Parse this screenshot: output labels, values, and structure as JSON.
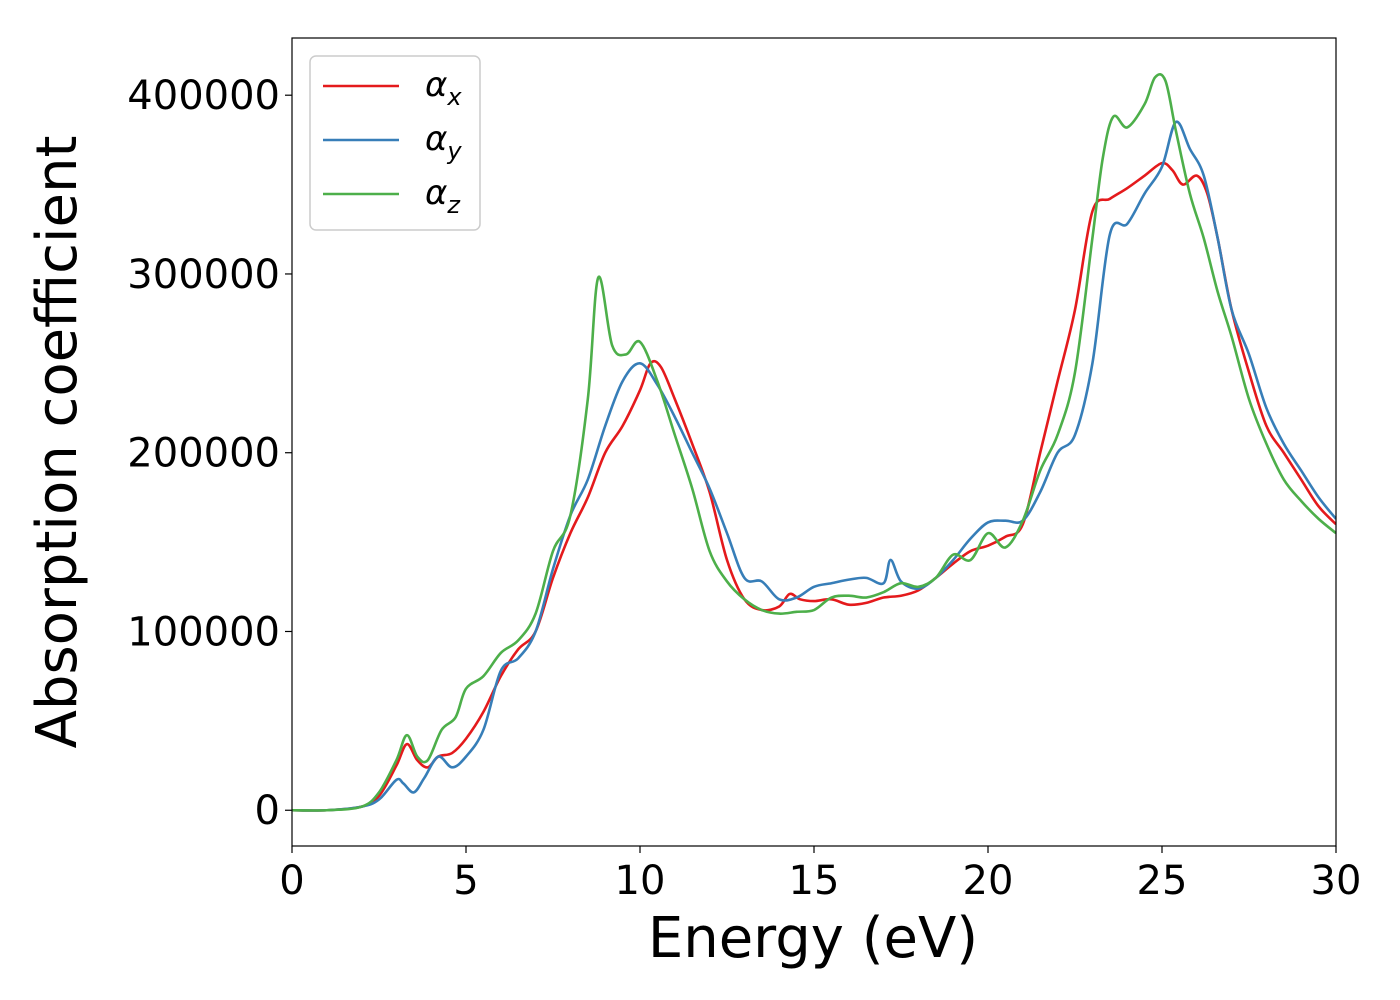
{
  "chart_data": {
    "type": "line",
    "title": "",
    "xlabel": "Energy (eV)",
    "ylabel": "Absorption coefficient",
    "xlim": [
      0,
      30
    ],
    "ylim": [
      -20000,
      432000
    ],
    "xticks": [
      0,
      5,
      10,
      15,
      20,
      25,
      30
    ],
    "yticks": [
      0,
      100000,
      200000,
      300000,
      400000
    ],
    "grid": false,
    "legend_position": "top-left",
    "series": [
      {
        "name": "αx",
        "symbol": "α",
        "subscript": "x",
        "color": "#e41a1c",
        "x": [
          0,
          1,
          2,
          2.5,
          3,
          3.3,
          3.6,
          3.9,
          4.2,
          4.6,
          5,
          5.5,
          6,
          6.5,
          7,
          7.5,
          8,
          8.5,
          9,
          9.5,
          10,
          10.3,
          10.6,
          11,
          11.5,
          12,
          12.5,
          13,
          13.5,
          14,
          14.3,
          14.6,
          15,
          15.5,
          16,
          16.5,
          17,
          17.5,
          18,
          18.5,
          19,
          19.5,
          20,
          20.5,
          21,
          21.5,
          22,
          22.5,
          23,
          23.5,
          24,
          24.5,
          25,
          25.3,
          25.6,
          26,
          26.3,
          26.6,
          27,
          27.5,
          28,
          28.5,
          29,
          29.5,
          30
        ],
        "y": [
          0,
          0,
          2000,
          8000,
          25000,
          37000,
          28000,
          24000,
          30000,
          32000,
          40000,
          55000,
          75000,
          90000,
          100000,
          130000,
          155000,
          175000,
          200000,
          215000,
          235000,
          250000,
          248000,
          230000,
          205000,
          178000,
          140000,
          118000,
          112000,
          114000,
          121000,
          118000,
          117000,
          118000,
          115000,
          116000,
          119000,
          120000,
          123000,
          130000,
          138000,
          145000,
          148000,
          153000,
          160000,
          200000,
          240000,
          280000,
          335000,
          342000,
          348000,
          355000,
          362000,
          358000,
          350000,
          355000,
          345000,
          320000,
          280000,
          245000,
          215000,
          200000,
          185000,
          170000,
          160000
        ]
      },
      {
        "name": "αy",
        "symbol": "α",
        "subscript": "y",
        "color": "#377eb8",
        "x": [
          0,
          1,
          2,
          2.5,
          3,
          3.2,
          3.5,
          3.8,
          4.2,
          4.6,
          5,
          5.5,
          6,
          6.5,
          7,
          7.5,
          8,
          8.5,
          9,
          9.5,
          10,
          10.5,
          11,
          11.5,
          12,
          12.5,
          13,
          13.5,
          14,
          14.5,
          15,
          15.5,
          16,
          16.5,
          17,
          17.2,
          17.5,
          18,
          18.5,
          19,
          19.5,
          20,
          20.5,
          21,
          21.5,
          22,
          22.5,
          23,
          23.5,
          24,
          24.5,
          25,
          25.4,
          25.8,
          26.2,
          26.6,
          27,
          27.5,
          28,
          28.5,
          29,
          29.5,
          30
        ],
        "y": [
          0,
          0,
          2000,
          6000,
          17000,
          15000,
          10000,
          18000,
          30000,
          24000,
          30000,
          45000,
          78000,
          85000,
          100000,
          135000,
          165000,
          185000,
          215000,
          240000,
          250000,
          238000,
          220000,
          200000,
          180000,
          155000,
          130000,
          128000,
          118000,
          119000,
          125000,
          127000,
          129000,
          130000,
          127000,
          140000,
          128000,
          124000,
          130000,
          140000,
          152000,
          161000,
          162000,
          162000,
          178000,
          200000,
          210000,
          250000,
          322000,
          328000,
          345000,
          360000,
          385000,
          370000,
          355000,
          320000,
          280000,
          255000,
          225000,
          205000,
          190000,
          175000,
          163000
        ]
      },
      {
        "name": "αz",
        "symbol": "α",
        "subscript": "z",
        "color": "#4daf4a",
        "x": [
          0,
          1,
          2,
          2.5,
          3,
          3.3,
          3.6,
          3.9,
          4.3,
          4.7,
          5,
          5.5,
          6,
          6.5,
          7,
          7.5,
          8,
          8.5,
          8.8,
          9.2,
          9.6,
          10,
          10.5,
          11,
          11.5,
          12,
          12.5,
          13,
          13.5,
          14,
          14.5,
          15,
          15.5,
          16,
          16.5,
          17,
          17.5,
          18,
          18.5,
          19,
          19.5,
          20,
          20.5,
          21,
          21.5,
          22,
          22.5,
          23,
          23.3,
          23.6,
          24,
          24.5,
          24.8,
          25.1,
          25.4,
          25.8,
          26.2,
          26.6,
          27,
          27.5,
          28,
          28.5,
          29,
          29.5,
          30
        ],
        "y": [
          0,
          0,
          2000,
          10000,
          28000,
          42000,
          30000,
          28000,
          45000,
          52000,
          68000,
          75000,
          88000,
          95000,
          110000,
          145000,
          165000,
          230000,
          298000,
          260000,
          255000,
          262000,
          240000,
          210000,
          180000,
          145000,
          128000,
          118000,
          112000,
          110000,
          111000,
          112000,
          119000,
          120000,
          119000,
          122000,
          127000,
          125000,
          130000,
          143000,
          140000,
          155000,
          147000,
          162000,
          190000,
          210000,
          245000,
          320000,
          365000,
          388000,
          382000,
          395000,
          410000,
          408000,
          380000,
          345000,
          320000,
          290000,
          265000,
          230000,
          205000,
          185000,
          173000,
          163000,
          155000
        ]
      }
    ]
  }
}
